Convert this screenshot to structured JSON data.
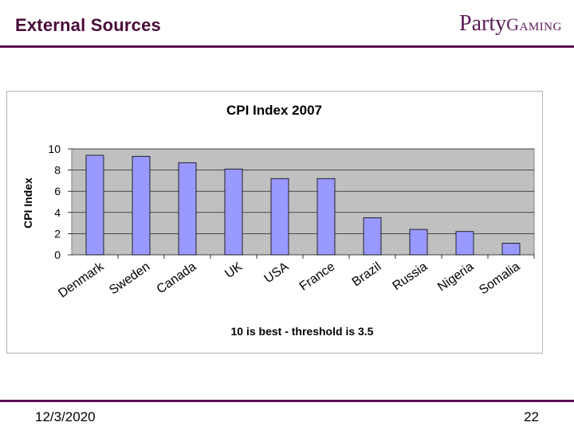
{
  "slide": {
    "title": "External Sources",
    "logo_part1": "Party",
    "logo_part2": "Gaming",
    "date": "12/3/2020",
    "page_number": "22"
  },
  "colors": {
    "accent": "#5b1257",
    "bar_fill": "#9999ff",
    "plot_bg": "#c0c0c0"
  },
  "chart_data": {
    "type": "bar",
    "title": "CPI Index 2007",
    "xlabel": "10 is best - threshold is 3.5",
    "ylabel": "CPI Index",
    "ylim": [
      0,
      10
    ],
    "yticks": [
      0,
      2,
      4,
      6,
      8,
      10
    ],
    "grid": true,
    "categories": [
      "Denmark",
      "Sweden",
      "Canada",
      "UK",
      "USA",
      "France",
      "Brazil",
      "Russia",
      "Nigeria",
      "Somalia"
    ],
    "values": [
      9.4,
      9.3,
      8.7,
      8.1,
      7.2,
      7.2,
      3.5,
      2.4,
      2.2,
      1.1
    ]
  }
}
